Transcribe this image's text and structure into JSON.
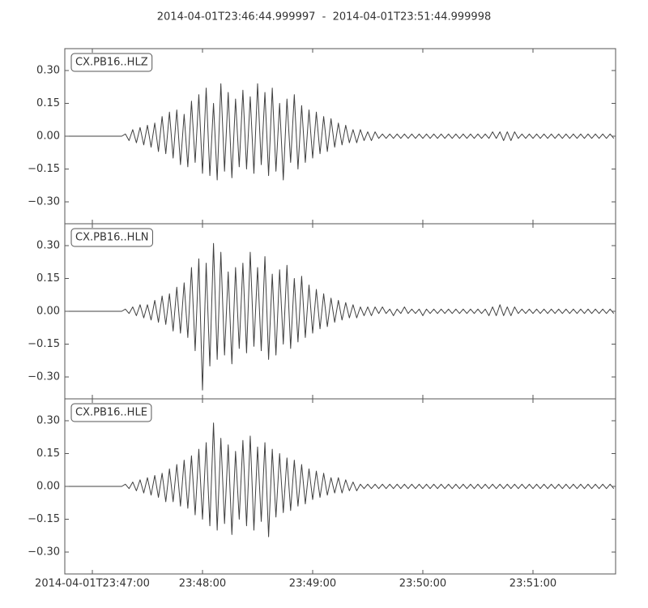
{
  "chart_data": {
    "type": "line",
    "title": "2014-04-01T23:46:44.999997  -  2014-04-01T23:51:44.999998",
    "xlim": [
      "2014-04-01T23:46:44.999997",
      "2014-04-01T23:51:44.999998"
    ],
    "xticks": [
      "2014-04-01T23:47:00",
      {
        "value": "2014-04-01T23:48:00",
        "label": "23:48:00"
      },
      {
        "value": "2014-04-01T23:49:00",
        "label": "23:49:00"
      },
      {
        "value": "2014-04-01T23:50:00",
        "label": "23:50:00"
      },
      {
        "value": "2014-04-01T23:51:00",
        "label": "23:51:00"
      }
    ],
    "ylim": [
      -0.4,
      0.4
    ],
    "yticks": [
      {
        "value": -0.3,
        "label": "−0.30"
      },
      {
        "value": -0.15,
        "label": "−0.15"
      },
      {
        "value": 0,
        "label": "0.00"
      },
      {
        "value": 0.15,
        "label": "0.15"
      },
      {
        "value": 0.3,
        "label": "0.30"
      }
    ],
    "x": [
      "2014-04-01T23:46:46",
      "2014-04-01T23:46:48",
      "2014-04-01T23:46:50",
      "2014-04-01T23:46:52",
      "2014-04-01T23:46:54",
      "2014-04-01T23:46:56",
      "2014-04-01T23:46:58",
      "2014-04-01T23:47:00",
      "2014-04-01T23:47:02",
      "2014-04-01T23:47:04",
      "2014-04-01T23:47:06",
      "2014-04-01T23:47:08",
      "2014-04-01T23:47:10",
      "2014-04-01T23:47:12",
      "2014-04-01T23:47:14",
      "2014-04-01T23:47:16",
      "2014-04-01T23:47:18",
      "2014-04-01T23:47:20",
      "2014-04-01T23:47:22",
      "2014-04-01T23:47:24",
      "2014-04-01T23:47:26",
      "2014-04-01T23:47:28",
      "2014-04-01T23:47:30",
      "2014-04-01T23:47:32",
      "2014-04-01T23:47:34",
      "2014-04-01T23:47:36",
      "2014-04-01T23:47:38",
      "2014-04-01T23:47:40",
      "2014-04-01T23:47:42",
      "2014-04-01T23:47:44",
      "2014-04-01T23:47:46",
      "2014-04-01T23:47:48",
      "2014-04-01T23:47:50",
      "2014-04-01T23:47:52",
      "2014-04-01T23:47:54",
      "2014-04-01T23:47:56",
      "2014-04-01T23:47:58",
      "2014-04-01T23:48:00",
      "2014-04-01T23:48:02",
      "2014-04-01T23:48:04",
      "2014-04-01T23:48:06",
      "2014-04-01T23:48:08",
      "2014-04-01T23:48:10",
      "2014-04-01T23:48:12",
      "2014-04-01T23:48:14",
      "2014-04-01T23:48:16",
      "2014-04-01T23:48:18",
      "2014-04-01T23:48:20",
      "2014-04-01T23:48:22",
      "2014-04-01T23:48:24",
      "2014-04-01T23:48:26",
      "2014-04-01T23:48:28",
      "2014-04-01T23:48:30",
      "2014-04-01T23:48:32",
      "2014-04-01T23:48:34",
      "2014-04-01T23:48:36",
      "2014-04-01T23:48:38",
      "2014-04-01T23:48:40",
      "2014-04-01T23:48:42",
      "2014-04-01T23:48:44",
      "2014-04-01T23:48:46",
      "2014-04-01T23:48:48",
      "2014-04-01T23:48:50",
      "2014-04-01T23:48:52",
      "2014-04-01T23:48:54",
      "2014-04-01T23:48:56",
      "2014-04-01T23:48:58",
      "2014-04-01T23:49:00",
      "2014-04-01T23:49:02",
      "2014-04-01T23:49:04",
      "2014-04-01T23:49:06",
      "2014-04-01T23:49:08",
      "2014-04-01T23:49:10",
      "2014-04-01T23:49:12",
      "2014-04-01T23:49:14",
      "2014-04-01T23:49:16",
      "2014-04-01T23:49:18",
      "2014-04-01T23:49:20",
      "2014-04-01T23:49:22",
      "2014-04-01T23:49:24",
      "2014-04-01T23:49:26",
      "2014-04-01T23:49:28",
      "2014-04-01T23:49:30",
      "2014-04-01T23:49:32",
      "2014-04-01T23:49:34",
      "2014-04-01T23:49:36",
      "2014-04-01T23:49:38",
      "2014-04-01T23:49:40",
      "2014-04-01T23:49:42",
      "2014-04-01T23:49:44",
      "2014-04-01T23:49:46",
      "2014-04-01T23:49:48",
      "2014-04-01T23:49:50",
      "2014-04-01T23:49:52",
      "2014-04-01T23:49:54",
      "2014-04-01T23:49:56",
      "2014-04-01T23:49:58",
      "2014-04-01T23:50:00",
      "2014-04-01T23:50:02",
      "2014-04-01T23:50:04",
      "2014-04-01T23:50:06",
      "2014-04-01T23:50:08",
      "2014-04-01T23:50:10",
      "2014-04-01T23:50:12",
      "2014-04-01T23:50:14",
      "2014-04-01T23:50:16",
      "2014-04-01T23:50:18",
      "2014-04-01T23:50:20",
      "2014-04-01T23:50:22",
      "2014-04-01T23:50:24",
      "2014-04-01T23:50:26",
      "2014-04-01T23:50:28",
      "2014-04-01T23:50:30",
      "2014-04-01T23:50:32",
      "2014-04-01T23:50:34",
      "2014-04-01T23:50:36",
      "2014-04-01T23:50:38",
      "2014-04-01T23:50:40",
      "2014-04-01T23:50:42",
      "2014-04-01T23:50:44",
      "2014-04-01T23:50:46",
      "2014-04-01T23:50:48",
      "2014-04-01T23:50:50",
      "2014-04-01T23:50:52",
      "2014-04-01T23:50:54",
      "2014-04-01T23:50:56",
      "2014-04-01T23:50:58",
      "2014-04-01T23:51:00",
      "2014-04-01T23:51:02",
      "2014-04-01T23:51:04",
      "2014-04-01T23:51:06",
      "2014-04-01T23:51:08",
      "2014-04-01T23:51:10",
      "2014-04-01T23:51:12",
      "2014-04-01T23:51:14",
      "2014-04-01T23:51:16",
      "2014-04-01T23:51:18",
      "2014-04-01T23:51:20",
      "2014-04-01T23:51:22",
      "2014-04-01T23:51:24",
      "2014-04-01T23:51:26",
      "2014-04-01T23:51:28",
      "2014-04-01T23:51:30",
      "2014-04-01T23:51:32",
      "2014-04-01T23:51:34",
      "2014-04-01T23:51:36",
      "2014-04-01T23:51:38",
      "2014-04-01T23:51:40",
      "2014-04-01T23:51:42",
      "2014-04-01T23:51:44"
    ],
    "series": [
      {
        "name": "CX.PB16..HLZ",
        "color": "#404040",
        "values": [
          0,
          0,
          0,
          0,
          0,
          0,
          0,
          0,
          0,
          0,
          0,
          0,
          0,
          0,
          0,
          0,
          0.01,
          -0.02,
          0.03,
          -0.03,
          0.04,
          -0.04,
          0.05,
          -0.05,
          0.06,
          -0.07,
          0.09,
          -0.08,
          0.11,
          -0.1,
          0.12,
          -0.13,
          0.1,
          -0.14,
          0.16,
          -0.12,
          0.19,
          -0.17,
          0.22,
          -0.18,
          0.15,
          -0.2,
          0.24,
          -0.16,
          0.2,
          -0.19,
          0.17,
          -0.14,
          0.21,
          -0.15,
          0.18,
          -0.17,
          0.24,
          -0.13,
          0.2,
          -0.18,
          0.22,
          -0.16,
          0.15,
          -0.2,
          0.17,
          -0.12,
          0.19,
          -0.15,
          0.14,
          -0.12,
          0.12,
          -0.1,
          0.11,
          -0.08,
          0.09,
          -0.07,
          0.08,
          -0.05,
          0.06,
          -0.04,
          0.05,
          -0.03,
          0.03,
          -0.03,
          0.03,
          -0.02,
          0.02,
          -0.02,
          0.02,
          -0.01,
          0.01,
          -0.01,
          0.01,
          -0.01,
          0.01,
          -0.01,
          0.01,
          -0.01,
          0.01,
          -0.01,
          0.01,
          -0.01,
          0.01,
          -0.01,
          0.01,
          -0.01,
          0.01,
          -0.01,
          0.01,
          -0.01,
          0.01,
          -0.01,
          0.01,
          -0.01,
          0.01,
          -0.01,
          0.01,
          -0.01,
          0.01,
          -0.01,
          0.02,
          -0.01,
          0.02,
          -0.02,
          0.02,
          -0.02,
          0.02,
          -0.01,
          0.01,
          -0.01,
          0.01,
          -0.01,
          0.01,
          -0.01,
          0.01,
          -0.01,
          0.01,
          -0.01,
          0.01,
          -0.01,
          0.01,
          -0.01,
          0.01,
          -0.01,
          0.01,
          -0.01,
          0.01,
          -0.01,
          0.01,
          -0.01,
          0.01,
          -0.01,
          0.01,
          -0.01
        ]
      },
      {
        "name": "CX.PB16..HLN",
        "color": "#404040",
        "values": [
          0,
          0,
          0,
          0,
          0,
          0,
          0,
          0,
          0,
          0,
          0,
          0,
          0,
          0,
          0,
          0,
          0.01,
          -0.01,
          0.02,
          -0.02,
          0.03,
          -0.03,
          0.03,
          -0.04,
          0.05,
          -0.05,
          0.07,
          -0.06,
          0.08,
          -0.09,
          0.11,
          -0.1,
          0.13,
          -0.12,
          0.2,
          -0.18,
          0.24,
          -0.36,
          0.22,
          -0.25,
          0.31,
          -0.22,
          0.27,
          -0.2,
          0.18,
          -0.24,
          0.2,
          -0.17,
          0.22,
          -0.19,
          0.27,
          -0.16,
          0.2,
          -0.18,
          0.25,
          -0.22,
          0.17,
          -0.2,
          0.19,
          -0.15,
          0.21,
          -0.17,
          0.15,
          -0.14,
          0.16,
          -0.12,
          0.12,
          -0.1,
          0.1,
          -0.08,
          0.08,
          -0.07,
          0.06,
          -0.05,
          0.05,
          -0.04,
          0.04,
          -0.03,
          0.03,
          -0.03,
          0.02,
          -0.02,
          0.02,
          -0.02,
          0.02,
          -0.01,
          0.02,
          -0.01,
          0.01,
          -0.02,
          0.01,
          -0.01,
          0.02,
          -0.01,
          0.01,
          -0.01,
          0.01,
          -0.02,
          0.01,
          -0.01,
          0.01,
          -0.01,
          0.01,
          -0.01,
          0.01,
          -0.01,
          0.01,
          -0.01,
          0.01,
          -0.01,
          0.01,
          -0.01,
          0.01,
          -0.01,
          0.01,
          -0.02,
          0.02,
          -0.02,
          0.03,
          -0.02,
          0.02,
          -0.02,
          0.02,
          -0.01,
          0.01,
          -0.01,
          0.01,
          -0.01,
          0.01,
          -0.01,
          0.01,
          -0.01,
          0.01,
          -0.01,
          0.01,
          -0.01,
          0.01,
          -0.01,
          0.01,
          -0.01,
          0.01,
          -0.01,
          0.01,
          -0.01,
          0.01,
          -0.01,
          0.01,
          -0.01,
          0.01,
          -0.01
        ]
      },
      {
        "name": "CX.PB16..HLE",
        "color": "#404040",
        "values": [
          0,
          0,
          0,
          0,
          0,
          0,
          0,
          0,
          0,
          0,
          0,
          0,
          0,
          0,
          0,
          0,
          0.01,
          -0.01,
          0.02,
          -0.02,
          0.03,
          -0.03,
          0.04,
          -0.04,
          0.05,
          -0.05,
          0.06,
          -0.07,
          0.08,
          -0.07,
          0.1,
          -0.09,
          0.12,
          -0.1,
          0.14,
          -0.13,
          0.17,
          -0.15,
          0.2,
          -0.18,
          0.29,
          -0.2,
          0.22,
          -0.17,
          0.19,
          -0.22,
          0.16,
          -0.15,
          0.21,
          -0.18,
          0.23,
          -0.2,
          0.18,
          -0.16,
          0.2,
          -0.23,
          0.17,
          -0.14,
          0.15,
          -0.12,
          0.13,
          -0.11,
          0.12,
          -0.09,
          0.1,
          -0.08,
          0.08,
          -0.06,
          0.07,
          -0.05,
          0.06,
          -0.04,
          0.04,
          -0.03,
          0.04,
          -0.03,
          0.03,
          -0.02,
          0.02,
          -0.02,
          0.01,
          -0.01,
          0.01,
          -0.01,
          0.01,
          -0.01,
          0.01,
          -0.01,
          0.01,
          -0.01,
          0.01,
          -0.01,
          0.01,
          -0.01,
          0.01,
          -0.01,
          0.01,
          -0.01,
          0.01,
          -0.01,
          0.01,
          -0.01,
          0.01,
          -0.01,
          0.01,
          -0.01,
          0.01,
          -0.01,
          0.01,
          -0.01,
          0.01,
          -0.01,
          0.01,
          -0.01,
          0.01,
          -0.01,
          0.01,
          -0.01,
          0.01,
          -0.01,
          0.01,
          -0.01,
          0.01,
          -0.01,
          0.01,
          -0.01,
          0.01,
          -0.01,
          0.01,
          -0.01,
          0.01,
          -0.01,
          0.01,
          -0.01,
          0.01,
          -0.01,
          0.01,
          -0.01,
          0.01,
          -0.01,
          0.01,
          -0.01,
          0.01,
          -0.01,
          0.01,
          -0.01,
          0.01,
          -0.01,
          0.01,
          -0.01
        ]
      }
    ]
  }
}
